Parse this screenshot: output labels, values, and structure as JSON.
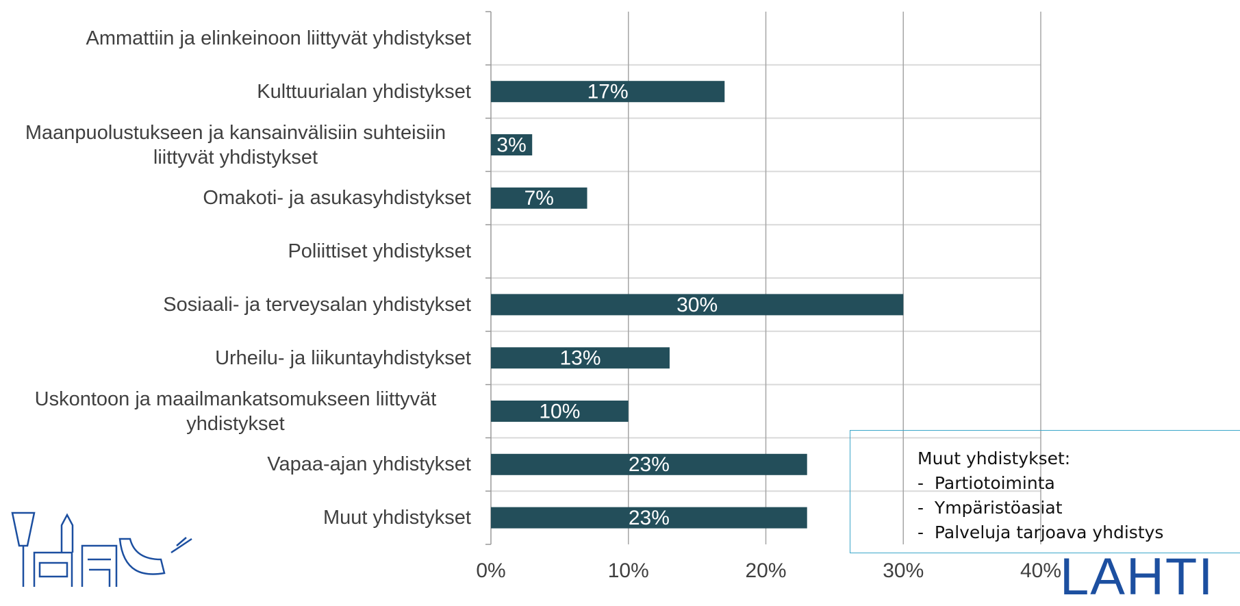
{
  "chart_data": {
    "type": "bar",
    "orientation": "horizontal",
    "categories": [
      "Ammattiin ja elinkeinoon liittyvät yhdistykset",
      "Kulttuurialan yhdistykset",
      "Maanpuolustukseen ja kansainvälisiin suhteisiin liittyvät yhdistykset",
      "Omakoti- ja asukasyhdistykset",
      "Poliittiset yhdistykset",
      "Sosiaali- ja terveysalan yhdistykset",
      "Urheilu- ja liikuntayhdistykset",
      "Uskontoon ja maailmankatsomukseen liittyvät yhdistykset",
      "Vapaa-ajan yhdistykset",
      "Muut yhdistykset"
    ],
    "values": [
      null,
      17,
      3,
      7,
      null,
      30,
      13,
      10,
      23,
      23
    ],
    "value_labels": [
      null,
      "17%",
      "3%",
      "7%",
      null,
      "30%",
      "13%",
      "10%",
      "23%",
      "23%"
    ],
    "color": "#234e5a",
    "xlim": [
      0,
      40
    ],
    "xticks": [
      {
        "value": 0,
        "label": "0%"
      },
      {
        "value": 10,
        "label": "10%"
      },
      {
        "value": 20,
        "label": "20%"
      },
      {
        "value": 30,
        "label": "30%"
      },
      {
        "value": 40,
        "label": "40%"
      }
    ],
    "grid": true
  },
  "textbox": {
    "heading": "Muut yhdistykset:",
    "items": [
      "Partiotoiminta",
      "Ympäristöasiat",
      "Palveluja tarjoava yhdistys"
    ]
  },
  "logo": {
    "text": "LAHTI"
  }
}
